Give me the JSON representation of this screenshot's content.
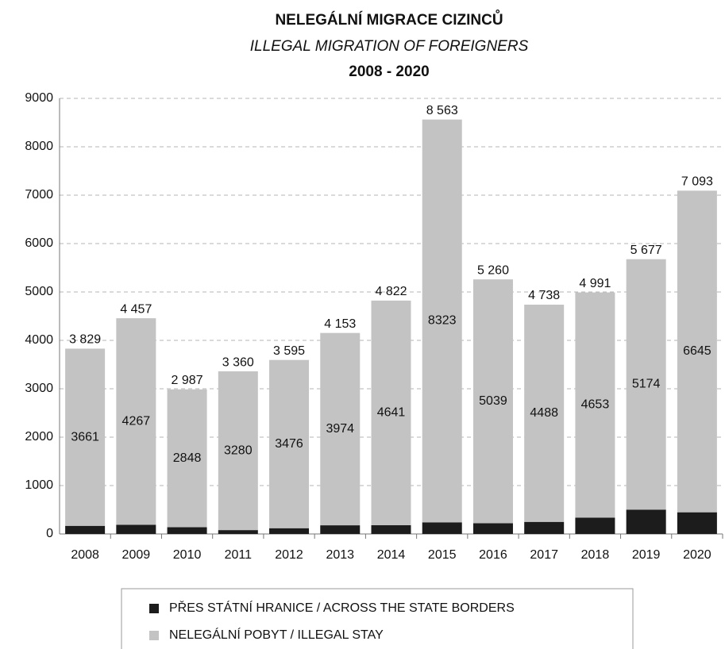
{
  "chart_data": {
    "type": "stacked_bar",
    "title": "NELEGÁLNÍ MIGRACE CIZINCŮ",
    "subtitle": "ILLEGAL MIGRATION OF FOREIGNERS",
    "date_range": "2008 - 2020",
    "categories": [
      "2008",
      "2009",
      "2010",
      "2011",
      "2012",
      "2013",
      "2014",
      "2015",
      "2016",
      "2017",
      "2018",
      "2019",
      "2020"
    ],
    "series": [
      {
        "name": "PŘES STÁTNÍ HRANICE / ACROSS THE STATE BORDERS",
        "color": "#1c1c1c",
        "values": [
          168,
          190,
          139,
          80,
          119,
          179,
          181,
          240,
          221,
          250,
          338,
          503,
          448
        ]
      },
      {
        "name": "NELEGÁLNÍ POBYT / ILLEGAL STAY",
        "color": "#c3c3c3",
        "values": [
          3661,
          4267,
          2848,
          3280,
          3476,
          3974,
          4641,
          8323,
          5039,
          4488,
          4653,
          5174,
          6645
        ]
      }
    ],
    "totals": {
      "values": [
        3829,
        4457,
        2987,
        3360,
        3595,
        4153,
        4822,
        8563,
        5260,
        4738,
        4991,
        5677,
        7093
      ],
      "value_labels": [
        "3 829",
        "4 457",
        "2 987",
        "3 360",
        "3 595",
        "4 153",
        "4 822",
        "8 563",
        "5 260",
        "4 738",
        "4 991",
        "5 677",
        "7 093"
      ]
    },
    "ylim": [
      0,
      9000
    ],
    "yticks": [
      0,
      1000,
      2000,
      3000,
      4000,
      5000,
      6000,
      7000,
      8000,
      9000
    ],
    "grid": true,
    "legend": "bottom"
  }
}
